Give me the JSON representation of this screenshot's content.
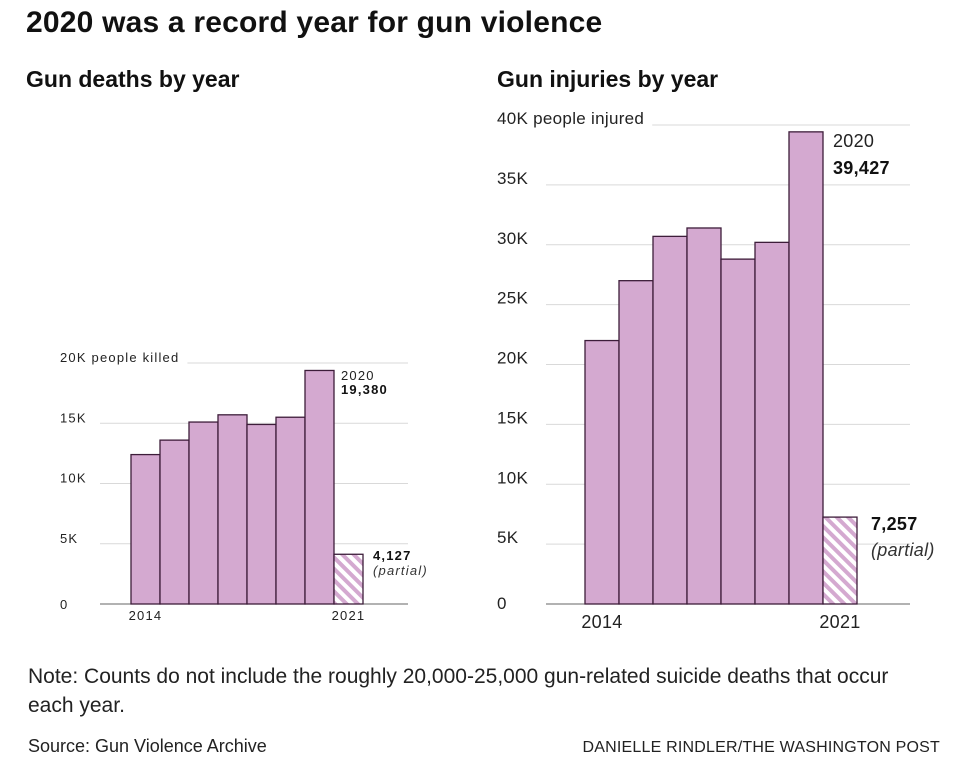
{
  "title": "2020 was a record year for gun violence",
  "note": "Note: Counts do not include the roughly 20,000-25,000 gun-related suicide deaths that occur each year.",
  "source": "Source: Gun Violence Archive",
  "credit": "DANIELLE RINDLER/THE WASHINGTON POST",
  "colors": {
    "bar_fill": "#d4a9d0",
    "bar_stroke": "#3d1d3a",
    "gridline": "#d9d9d9",
    "axis": "#666666"
  },
  "chart_data": [
    {
      "type": "bar",
      "subtitle": "Gun deaths by year",
      "categories": [
        "2014",
        "2015",
        "2016",
        "2017",
        "2018",
        "2019",
        "2020",
        "2021"
      ],
      "values": [
        12400,
        13600,
        15100,
        15700,
        14900,
        15500,
        19380,
        4127
      ],
      "partial_category": "2021",
      "yticks": [
        "0",
        "5K",
        "10K",
        "15K",
        "20K people killed"
      ],
      "ytick_values": [
        0,
        5000,
        10000,
        15000,
        20000
      ],
      "ylim": [
        0,
        20000
      ],
      "xtick_labels": [
        {
          "category": "2014",
          "label": "2014"
        },
        {
          "category": "2021",
          "label": "2021"
        }
      ],
      "annotations": {
        "peak_year": "2020",
        "peak_value": "19,380",
        "partial_value": "4,127",
        "partial_label": "(partial)"
      },
      "grid": true
    },
    {
      "type": "bar",
      "subtitle": "Gun injuries by year",
      "categories": [
        "2014",
        "2015",
        "2016",
        "2017",
        "2018",
        "2019",
        "2020",
        "2021"
      ],
      "values": [
        22000,
        27000,
        30700,
        31400,
        28800,
        30200,
        39427,
        7257
      ],
      "partial_category": "2021",
      "yticks": [
        "0",
        "5K",
        "10K",
        "15K",
        "20K",
        "25K",
        "30K",
        "35K",
        "40K people injured"
      ],
      "ytick_values": [
        0,
        5000,
        10000,
        15000,
        20000,
        25000,
        30000,
        35000,
        40000
      ],
      "ylim": [
        0,
        40000
      ],
      "xtick_labels": [
        {
          "category": "2014",
          "label": "2014"
        },
        {
          "category": "2021",
          "label": "2021"
        }
      ],
      "annotations": {
        "peak_year": "2020",
        "peak_value": "39,427",
        "partial_value": "7,257",
        "partial_label": "(partial)"
      },
      "grid": true
    }
  ]
}
